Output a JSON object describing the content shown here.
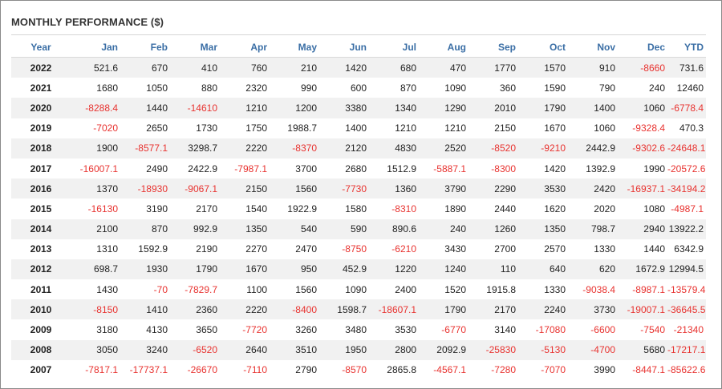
{
  "title": "MONTHLY PERFORMANCE ($)",
  "table": {
    "headers": [
      "Year",
      "Jan",
      "Feb",
      "Mar",
      "Apr",
      "May",
      "Jun",
      "Jul",
      "Aug",
      "Sep",
      "Oct",
      "Nov",
      "Dec",
      "YTD"
    ],
    "rows": [
      [
        "2022",
        "521.6",
        "670",
        "410",
        "760",
        "210",
        "1420",
        "680",
        "470",
        "1770",
        "1570",
        "910",
        "-8660",
        "731.6"
      ],
      [
        "2021",
        "1680",
        "1050",
        "880",
        "2320",
        "990",
        "600",
        "870",
        "1090",
        "360",
        "1590",
        "790",
        "240",
        "12460"
      ],
      [
        "2020",
        "-8288.4",
        "1440",
        "-14610",
        "1210",
        "1200",
        "3380",
        "1340",
        "1290",
        "2010",
        "1790",
        "1400",
        "1060",
        "-6778.4"
      ],
      [
        "2019",
        "-7020",
        "2650",
        "1730",
        "1750",
        "1988.7",
        "1400",
        "1210",
        "1210",
        "2150",
        "1670",
        "1060",
        "-9328.4",
        "470.3"
      ],
      [
        "2018",
        "1900",
        "-8577.1",
        "3298.7",
        "2220",
        "-8370",
        "2120",
        "4830",
        "2520",
        "-8520",
        "-9210",
        "2442.9",
        "-9302.6",
        "-24648.1"
      ],
      [
        "2017",
        "-16007.1",
        "2490",
        "2422.9",
        "-7987.1",
        "3700",
        "2680",
        "1512.9",
        "-5887.1",
        "-8300",
        "1420",
        "1392.9",
        "1990",
        "-20572.6"
      ],
      [
        "2016",
        "1370",
        "-18930",
        "-9067.1",
        "2150",
        "1560",
        "-7730",
        "1360",
        "3790",
        "2290",
        "3530",
        "2420",
        "-16937.1",
        "-34194.2"
      ],
      [
        "2015",
        "-16130",
        "3190",
        "2170",
        "1540",
        "1922.9",
        "1580",
        "-8310",
        "1890",
        "2440",
        "1620",
        "2020",
        "1080",
        "-4987.1"
      ],
      [
        "2014",
        "2100",
        "870",
        "992.9",
        "1350",
        "540",
        "590",
        "890.6",
        "240",
        "1260",
        "1350",
        "798.7",
        "2940",
        "13922.2"
      ],
      [
        "2013",
        "1310",
        "1592.9",
        "2190",
        "2270",
        "2470",
        "-8750",
        "-6210",
        "3430",
        "2700",
        "2570",
        "1330",
        "1440",
        "6342.9"
      ],
      [
        "2012",
        "698.7",
        "1930",
        "1790",
        "1670",
        "950",
        "452.9",
        "1220",
        "1240",
        "110",
        "640",
        "620",
        "1672.9",
        "12994.5"
      ],
      [
        "2011",
        "1430",
        "-70",
        "-7829.7",
        "1100",
        "1560",
        "1090",
        "2400",
        "1520",
        "1915.8",
        "1330",
        "-9038.4",
        "-8987.1",
        "-13579.4"
      ],
      [
        "2010",
        "-8150",
        "1410",
        "2360",
        "2220",
        "-8400",
        "1598.7",
        "-18607.1",
        "1790",
        "2170",
        "2240",
        "3730",
        "-19007.1",
        "-36645.5"
      ],
      [
        "2009",
        "3180",
        "4130",
        "3650",
        "-7720",
        "3260",
        "3480",
        "3530",
        "-6770",
        "3140",
        "-17080",
        "-6600",
        "-7540",
        "-21340"
      ],
      [
        "2008",
        "3050",
        "3240",
        "-6520",
        "2640",
        "3510",
        "1950",
        "2800",
        "2092.9",
        "-25830",
        "-5130",
        "-4700",
        "5680",
        "-17217.1"
      ],
      [
        "2007",
        "-7817.1",
        "-17737.1",
        "-26670",
        "-7110",
        "2790",
        "-8570",
        "2865.8",
        "-4567.1",
        "-7280",
        "-7070",
        "3990",
        "-8447.1",
        "-85622.6"
      ]
    ]
  },
  "colors": {
    "header_text": "#3a6ea5",
    "negative": "#e8322f",
    "positive": "#222222",
    "stripe": "#f1f1f1"
  }
}
